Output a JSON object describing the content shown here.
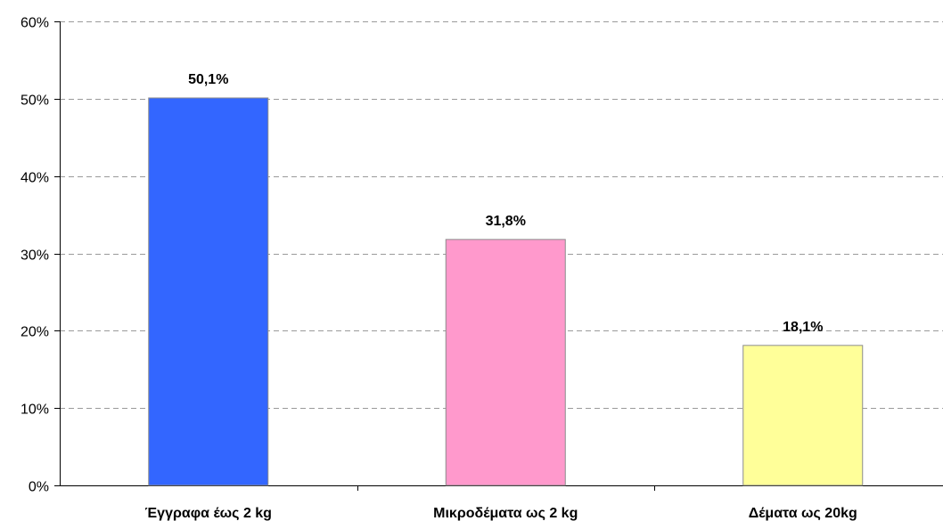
{
  "chart_data": {
    "type": "bar",
    "categories": [
      "Έγγραφα έως 2 kg",
      "Μικροδέματα ως 2 kg",
      "Δέματα ως 20kg"
    ],
    "values": [
      50.1,
      31.8,
      18.1
    ],
    "value_labels": [
      "50,1%",
      "31,8%",
      "18,1%"
    ],
    "bar_colors": [
      "#3366FF",
      "#FF99CC",
      "#FFFF99"
    ],
    "ylim": [
      0,
      60
    ],
    "yticks": [
      0,
      10,
      20,
      30,
      40,
      50,
      60
    ],
    "ytick_labels": [
      "0%",
      "10%",
      "20%",
      "30%",
      "40%",
      "50%",
      "60%"
    ],
    "grid": true,
    "legend": false,
    "title": "",
    "xlabel": "",
    "ylabel": ""
  }
}
